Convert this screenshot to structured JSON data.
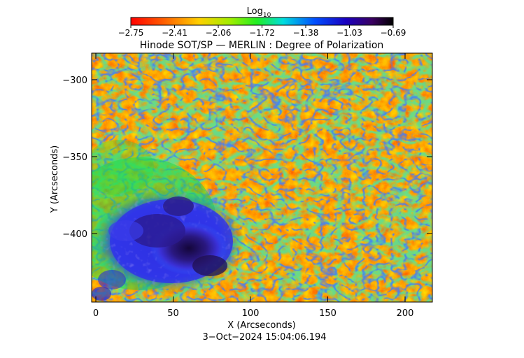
{
  "colorbar": {
    "label_main": "Log",
    "label_sub": "10",
    "ticks": [
      "−2.75",
      "−2.41",
      "−2.06",
      "−1.72",
      "−1.38",
      "−1.03",
      "−0.69"
    ],
    "colors": [
      "#ff0000",
      "#ff8c00",
      "#ffee00",
      "#22ee22",
      "#00dddd",
      "#0044ff",
      "#1a00aa",
      "#000000"
    ]
  },
  "title": "Hinode SOT/SP — MERLIN : Degree of Polarization",
  "axes": {
    "xlabel": "X (Arcseconds)",
    "ylabel": "Y (Arcseconds)",
    "xticks": [
      "0",
      "50",
      "100",
      "150",
      "200"
    ],
    "yticks": [
      "−300",
      "−350",
      "−400"
    ]
  },
  "timestamp": "3−Oct−2024 15:04:06.194",
  "image": {
    "description": "Solar map of degree of polarization; plage/quiet-sun network shown as red/orange background, magnetic network in green/blue lanes, sunspot region in lower-left in dark blue/purple",
    "colors": {
      "background_high": "#ff2a00",
      "background_mid": "#ff7a00",
      "network_green": "#30e030",
      "network_cyan": "#00e0e0",
      "network_blue": "#1030ff",
      "spot_blue": "#3a20d0",
      "spot_dark": "#1a0a55"
    }
  }
}
